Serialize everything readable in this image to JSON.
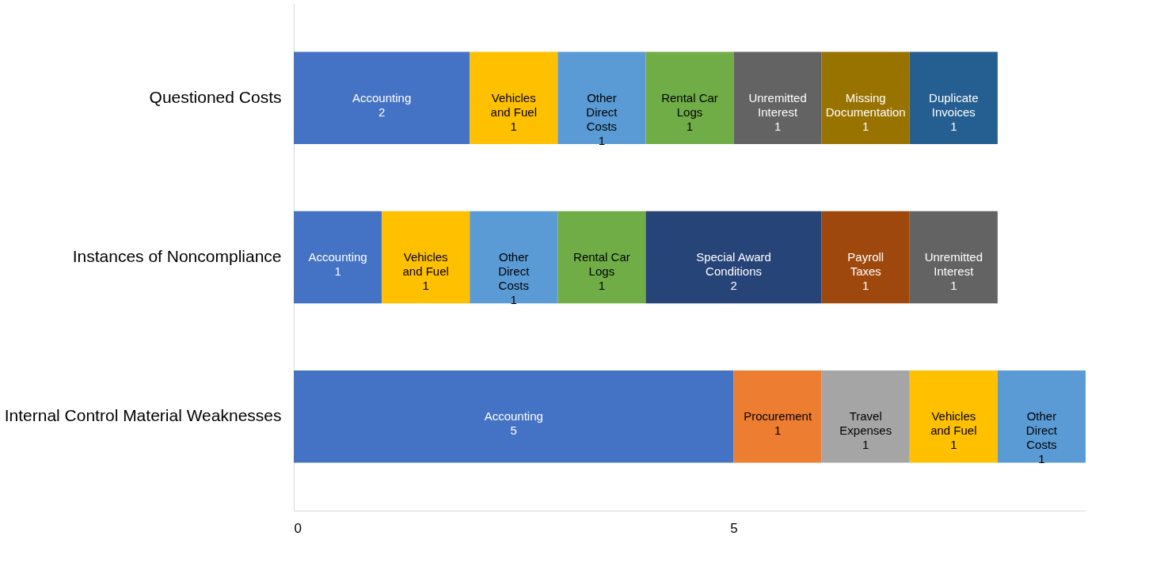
{
  "chart_data": {
    "type": "bar",
    "orientation": "horizontal",
    "stacked": true,
    "data_labels": true,
    "grid": false,
    "legend": false,
    "categories": [
      "Questioned Costs",
      "Instances of Noncompliance",
      "Internal Control Material Weaknesses"
    ],
    "xlim": [
      0,
      9
    ],
    "xticks": [
      {
        "value": 0,
        "label": "0"
      },
      {
        "value": 5,
        "label": "5"
      }
    ],
    "series": [
      {
        "name": "Accounting",
        "color": "#4472c4",
        "values": [
          2,
          1,
          5
        ]
      },
      {
        "name": "Procurement",
        "color": "#ed7d31",
        "values": [
          null,
          null,
          1
        ]
      },
      {
        "name": "Travel Expenses",
        "color": "#a5a5a5",
        "values": [
          null,
          null,
          1
        ]
      },
      {
        "name": "Vehicles and Fuel",
        "color": "#ffc000",
        "values": [
          1,
          1,
          1
        ]
      },
      {
        "name": "Other Direct Costs",
        "color": "#5b9bd5",
        "values": [
          1,
          1,
          1
        ]
      },
      {
        "name": "Rental Car Logs",
        "color": "#70ad47",
        "values": [
          1,
          1,
          null
        ]
      },
      {
        "name": "Special Award Conditions",
        "color": "#264478",
        "values": [
          null,
          2,
          null
        ]
      },
      {
        "name": "Payroll Taxes",
        "color": "#9e480e",
        "values": [
          null,
          1,
          null
        ]
      },
      {
        "name": "Unremitted Interest",
        "color": "#636363",
        "values": [
          1,
          1,
          null
        ]
      },
      {
        "name": "Missing Documentation",
        "color": "#997300",
        "values": [
          1,
          null,
          null
        ]
      },
      {
        "name": "Duplicate Invoices",
        "color": "#255e91",
        "values": [
          1,
          null,
          null
        ]
      }
    ]
  }
}
